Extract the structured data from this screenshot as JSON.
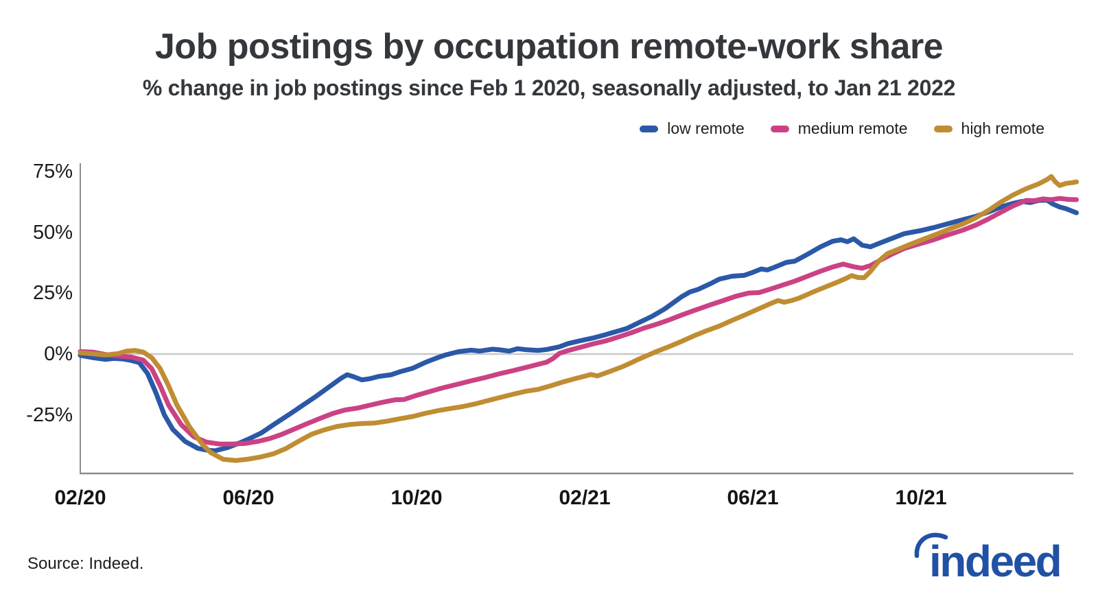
{
  "header": {
    "title": "Job postings by occupation remote-work share",
    "subtitle": "% change in job postings since Feb 1 2020, seasonally adjusted, to Jan 21 2022"
  },
  "legend": {
    "items": [
      {
        "key": "low_remote",
        "label": "low remote"
      },
      {
        "key": "medium_remote",
        "label": "medium remote"
      },
      {
        "key": "high_remote",
        "label": "high remote"
      }
    ]
  },
  "colors": {
    "low_remote": "#2b58a7",
    "medium_remote": "#cb4284",
    "high_remote": "#c08d33",
    "axis_line": "#8c8c8c",
    "zero_gridline": "#c8c8c8",
    "title_text": "#34383c",
    "tick_text": "#1b1b1b",
    "logo_blue": "#2151a5"
  },
  "y_axis": {
    "ticks": [
      {
        "label": "75%",
        "value": 75
      },
      {
        "label": "50%",
        "value": 50
      },
      {
        "label": "25%",
        "value": 25
      },
      {
        "label": "0%",
        "value": 0
      },
      {
        "label": "-25%",
        "value": -25
      }
    ]
  },
  "x_axis": {
    "ticks": [
      {
        "label": "02/20",
        "month": 0
      },
      {
        "label": "06/20",
        "month": 4
      },
      {
        "label": "10/20",
        "month": 8
      },
      {
        "label": "02/21",
        "month": 12
      },
      {
        "label": "06/21",
        "month": 16
      },
      {
        "label": "10/21",
        "month": 20
      }
    ]
  },
  "footer": {
    "source": "Source: Indeed.",
    "logo_text": "indeed"
  },
  "chart_data": {
    "type": "line",
    "title": "Job postings by occupation remote-work share",
    "subtitle": "% change in job postings since Feb 1 2020, seasonally adjusted, to Jan 21 2022",
    "xlabel": "months since Feb 1 2020 (0 = 02/2020, 23.7 = Jan 21 2022)",
    "ylabel": "% change in job postings",
    "ylim": [
      -50,
      80
    ],
    "yticks": [
      -25,
      0,
      25,
      50,
      75
    ],
    "xtick_months": [
      0,
      4,
      8,
      12,
      16,
      20
    ],
    "xtick_labels": [
      "02/20",
      "06/20",
      "10/20",
      "02/21",
      "06/21",
      "10/21"
    ],
    "grid": "zero line only",
    "legend_position": "top right",
    "series": [
      {
        "name": "low remote",
        "key": "low_remote",
        "points": [
          [
            0,
            -0.5
          ],
          [
            0.3,
            -1.5
          ],
          [
            0.6,
            -2.2
          ],
          [
            0.8,
            -1.8
          ],
          [
            1.0,
            -2.0
          ],
          [
            1.2,
            -2.6
          ],
          [
            1.4,
            -3.5
          ],
          [
            1.6,
            -8
          ],
          [
            1.8,
            -16
          ],
          [
            2.0,
            -25
          ],
          [
            2.2,
            -31
          ],
          [
            2.5,
            -36
          ],
          [
            2.8,
            -38.8
          ],
          [
            3.0,
            -39.5
          ],
          [
            3.2,
            -39.8
          ],
          [
            3.5,
            -38.5
          ],
          [
            3.8,
            -36.5
          ],
          [
            4.0,
            -35
          ],
          [
            4.3,
            -32.5
          ],
          [
            4.6,
            -29
          ],
          [
            5.0,
            -24.5
          ],
          [
            5.3,
            -21
          ],
          [
            5.6,
            -17.5
          ],
          [
            6.0,
            -12.5
          ],
          [
            6.2,
            -10
          ],
          [
            6.35,
            -8.5
          ],
          [
            6.5,
            -9.3
          ],
          [
            6.7,
            -10.6
          ],
          [
            6.9,
            -10.1
          ],
          [
            7.1,
            -9.2
          ],
          [
            7.4,
            -8.5
          ],
          [
            7.6,
            -7.3
          ],
          [
            7.9,
            -5.9
          ],
          [
            8.2,
            -3.5
          ],
          [
            8.5,
            -1.5
          ],
          [
            8.7,
            -0.3
          ],
          [
            9.0,
            1.0
          ],
          [
            9.3,
            1.6
          ],
          [
            9.5,
            1.2
          ],
          [
            9.8,
            2.0
          ],
          [
            10.0,
            1.7
          ],
          [
            10.2,
            1.2
          ],
          [
            10.4,
            2.2
          ],
          [
            10.6,
            1.8
          ],
          [
            10.9,
            1.5
          ],
          [
            11.1,
            1.9
          ],
          [
            11.4,
            3.0
          ],
          [
            11.6,
            4.3
          ],
          [
            11.9,
            5.5
          ],
          [
            12.2,
            6.6
          ],
          [
            12.5,
            8.0
          ],
          [
            12.8,
            9.5
          ],
          [
            13.0,
            10.5
          ],
          [
            13.3,
            13
          ],
          [
            13.6,
            15.5
          ],
          [
            13.9,
            18.5
          ],
          [
            14.1,
            21
          ],
          [
            14.3,
            23.5
          ],
          [
            14.5,
            25.5
          ],
          [
            14.7,
            26.6
          ],
          [
            15.0,
            29
          ],
          [
            15.2,
            30.8
          ],
          [
            15.5,
            32
          ],
          [
            15.8,
            32.4
          ],
          [
            16.0,
            33.6
          ],
          [
            16.2,
            35
          ],
          [
            16.35,
            34.6
          ],
          [
            16.5,
            35.6
          ],
          [
            16.8,
            37.7
          ],
          [
            17.0,
            38.2
          ],
          [
            17.3,
            41
          ],
          [
            17.6,
            44
          ],
          [
            17.9,
            46.4
          ],
          [
            18.1,
            47
          ],
          [
            18.25,
            46.2
          ],
          [
            18.4,
            47.4
          ],
          [
            18.6,
            44.8
          ],
          [
            18.8,
            44.1
          ],
          [
            19.0,
            45.5
          ],
          [
            19.3,
            47.5
          ],
          [
            19.6,
            49.5
          ],
          [
            20.0,
            50.8
          ],
          [
            20.3,
            52
          ],
          [
            20.6,
            53.4
          ],
          [
            21.0,
            55.3
          ],
          [
            21.3,
            56.6
          ],
          [
            21.6,
            58.4
          ],
          [
            21.9,
            60.5
          ],
          [
            22.2,
            62
          ],
          [
            22.4,
            62.8
          ],
          [
            22.6,
            62.3
          ],
          [
            22.8,
            63.2
          ],
          [
            23.0,
            63.3
          ],
          [
            23.15,
            61.6
          ],
          [
            23.3,
            60.5
          ],
          [
            23.45,
            59.8
          ],
          [
            23.6,
            58.8
          ],
          [
            23.7,
            58.1
          ]
        ]
      },
      {
        "name": "medium remote",
        "key": "medium_remote",
        "points": [
          [
            0,
            1.0
          ],
          [
            0.3,
            0.8
          ],
          [
            0.6,
            -0.2
          ],
          [
            0.9,
            -0.8
          ],
          [
            1.2,
            -1.2
          ],
          [
            1.5,
            -2.5
          ],
          [
            1.7,
            -6
          ],
          [
            1.9,
            -13
          ],
          [
            2.1,
            -21
          ],
          [
            2.4,
            -29
          ],
          [
            2.7,
            -34
          ],
          [
            3.0,
            -36.2
          ],
          [
            3.3,
            -37
          ],
          [
            3.6,
            -37
          ],
          [
            3.9,
            -36.8
          ],
          [
            4.2,
            -36
          ],
          [
            4.5,
            -34.8
          ],
          [
            4.8,
            -33
          ],
          [
            5.1,
            -30.8
          ],
          [
            5.4,
            -28.6
          ],
          [
            5.7,
            -26.5
          ],
          [
            6.0,
            -24.5
          ],
          [
            6.3,
            -23
          ],
          [
            6.6,
            -22.2
          ],
          [
            6.9,
            -21
          ],
          [
            7.2,
            -19.8
          ],
          [
            7.5,
            -18.8
          ],
          [
            7.7,
            -18.7
          ],
          [
            8.0,
            -17
          ],
          [
            8.3,
            -15.5
          ],
          [
            8.6,
            -14
          ],
          [
            9.0,
            -12.3
          ],
          [
            9.3,
            -11
          ],
          [
            9.6,
            -9.8
          ],
          [
            10.0,
            -8
          ],
          [
            10.3,
            -6.8
          ],
          [
            10.6,
            -5.5
          ],
          [
            10.9,
            -4.2
          ],
          [
            11.1,
            -3.3
          ],
          [
            11.25,
            -1.8
          ],
          [
            11.4,
            0.3
          ],
          [
            11.6,
            1.4
          ],
          [
            11.9,
            2.8
          ],
          [
            12.2,
            4.2
          ],
          [
            12.5,
            5.4
          ],
          [
            12.8,
            7
          ],
          [
            13.1,
            8.7
          ],
          [
            13.4,
            10.6
          ],
          [
            13.7,
            12.2
          ],
          [
            14.0,
            14
          ],
          [
            14.3,
            16
          ],
          [
            14.6,
            17.9
          ],
          [
            15.0,
            20.3
          ],
          [
            15.3,
            22
          ],
          [
            15.6,
            23.8
          ],
          [
            15.9,
            25.1
          ],
          [
            16.15,
            25.3
          ],
          [
            16.4,
            26.6
          ],
          [
            16.7,
            28.3
          ],
          [
            17.0,
            30
          ],
          [
            17.3,
            32
          ],
          [
            17.6,
            34
          ],
          [
            17.9,
            35.8
          ],
          [
            18.15,
            37
          ],
          [
            18.4,
            35.9
          ],
          [
            18.6,
            35.3
          ],
          [
            18.8,
            36.4
          ],
          [
            19.0,
            38.3
          ],
          [
            19.3,
            41
          ],
          [
            19.6,
            43.4
          ],
          [
            20.0,
            45.5
          ],
          [
            20.3,
            47
          ],
          [
            20.6,
            48.8
          ],
          [
            21.0,
            51
          ],
          [
            21.3,
            53
          ],
          [
            21.6,
            55.5
          ],
          [
            21.9,
            58.3
          ],
          [
            22.2,
            61
          ],
          [
            22.5,
            63.2
          ],
          [
            22.7,
            63.1
          ],
          [
            22.9,
            63.8
          ],
          [
            23.1,
            63.5
          ],
          [
            23.3,
            64
          ],
          [
            23.5,
            63.6
          ],
          [
            23.7,
            63.5
          ]
        ]
      },
      {
        "name": "high remote",
        "key": "high_remote",
        "points": [
          [
            0,
            0.5
          ],
          [
            0.3,
            0.1
          ],
          [
            0.6,
            -0.4
          ],
          [
            0.9,
            0.2
          ],
          [
            1.1,
            1.2
          ],
          [
            1.3,
            1.5
          ],
          [
            1.5,
            0.8
          ],
          [
            1.7,
            -1.5
          ],
          [
            1.9,
            -6
          ],
          [
            2.1,
            -13
          ],
          [
            2.3,
            -21
          ],
          [
            2.6,
            -30
          ],
          [
            2.9,
            -37
          ],
          [
            3.1,
            -40.5
          ],
          [
            3.4,
            -43.3
          ],
          [
            3.7,
            -43.8
          ],
          [
            4.0,
            -43.2
          ],
          [
            4.3,
            -42.3
          ],
          [
            4.6,
            -41
          ],
          [
            4.9,
            -38.8
          ],
          [
            5.2,
            -35.8
          ],
          [
            5.5,
            -33
          ],
          [
            5.8,
            -31.2
          ],
          [
            6.1,
            -29.8
          ],
          [
            6.4,
            -29
          ],
          [
            6.7,
            -28.6
          ],
          [
            7.0,
            -28.4
          ],
          [
            7.3,
            -27.6
          ],
          [
            7.6,
            -26.6
          ],
          [
            7.9,
            -25.7
          ],
          [
            8.2,
            -24.4
          ],
          [
            8.5,
            -23.3
          ],
          [
            8.8,
            -22.4
          ],
          [
            9.1,
            -21.6
          ],
          [
            9.4,
            -20.5
          ],
          [
            9.7,
            -19.1
          ],
          [
            10.0,
            -17.8
          ],
          [
            10.3,
            -16.5
          ],
          [
            10.6,
            -15.3
          ],
          [
            10.9,
            -14.5
          ],
          [
            11.2,
            -13
          ],
          [
            11.5,
            -11.4
          ],
          [
            11.8,
            -10
          ],
          [
            12.0,
            -9.1
          ],
          [
            12.15,
            -8.4
          ],
          [
            12.3,
            -9
          ],
          [
            12.5,
            -7.8
          ],
          [
            12.7,
            -6.5
          ],
          [
            12.9,
            -5.2
          ],
          [
            13.1,
            -3.6
          ],
          [
            13.3,
            -2
          ],
          [
            13.5,
            -0.5
          ],
          [
            13.7,
            1
          ],
          [
            14.0,
            3
          ],
          [
            14.3,
            5.2
          ],
          [
            14.6,
            7.5
          ],
          [
            14.9,
            9.6
          ],
          [
            15.2,
            11.5
          ],
          [
            15.5,
            13.8
          ],
          [
            15.8,
            16
          ],
          [
            16.1,
            18.3
          ],
          [
            16.4,
            20.6
          ],
          [
            16.6,
            22
          ],
          [
            16.75,
            21.3
          ],
          [
            16.9,
            21.9
          ],
          [
            17.1,
            23
          ],
          [
            17.4,
            25.3
          ],
          [
            17.7,
            27.4
          ],
          [
            18.0,
            29.5
          ],
          [
            18.2,
            31
          ],
          [
            18.35,
            32.3
          ],
          [
            18.5,
            31.5
          ],
          [
            18.65,
            31.4
          ],
          [
            18.8,
            34
          ],
          [
            19.0,
            38.3
          ],
          [
            19.2,
            41.3
          ],
          [
            19.5,
            43.4
          ],
          [
            19.8,
            45.5
          ],
          [
            20.1,
            47.5
          ],
          [
            20.4,
            49.5
          ],
          [
            20.7,
            51.6
          ],
          [
            21.0,
            53.5
          ],
          [
            21.3,
            56
          ],
          [
            21.6,
            59
          ],
          [
            21.9,
            62.5
          ],
          [
            22.2,
            65.5
          ],
          [
            22.5,
            68
          ],
          [
            22.8,
            70
          ],
          [
            23.0,
            71.8
          ],
          [
            23.1,
            73
          ],
          [
            23.2,
            70.8
          ],
          [
            23.3,
            69.3
          ],
          [
            23.45,
            70.2
          ],
          [
            23.6,
            70.5
          ],
          [
            23.7,
            70.8
          ]
        ]
      }
    ]
  }
}
